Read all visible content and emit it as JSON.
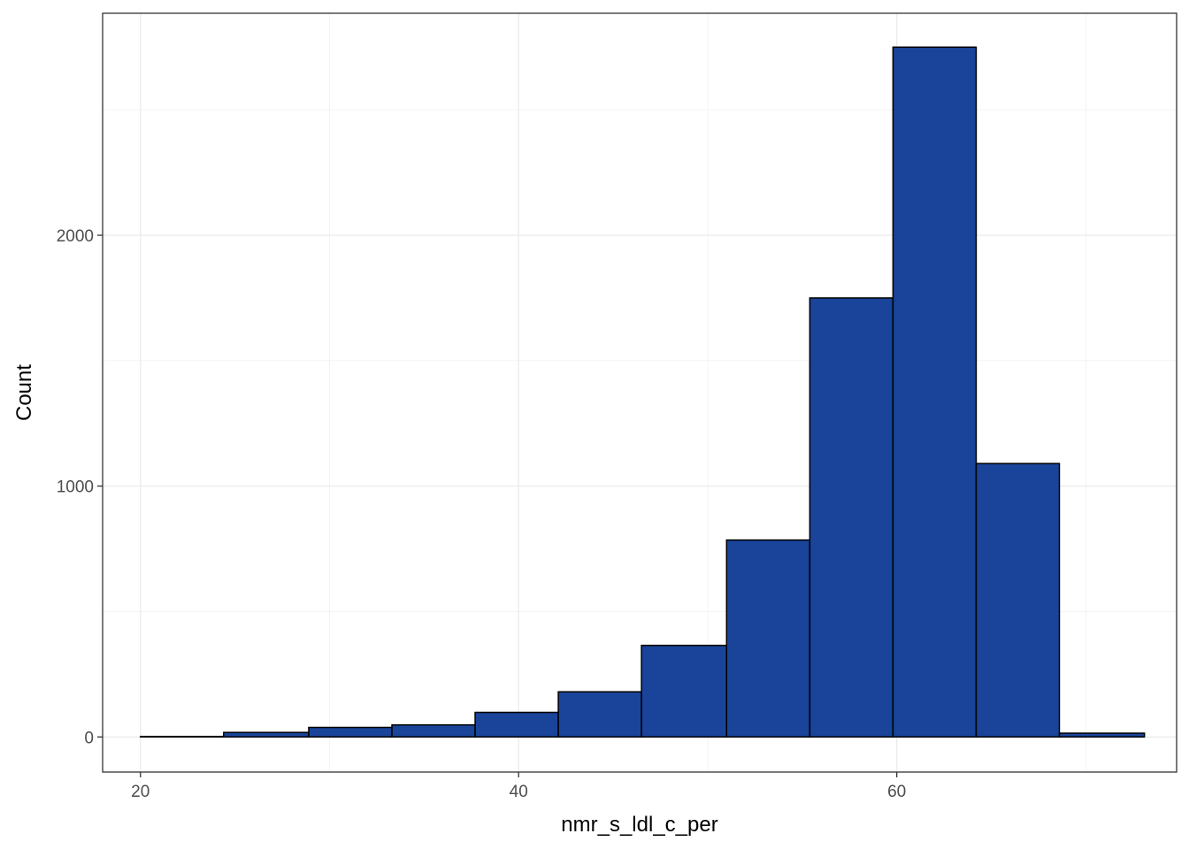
{
  "chart_data": {
    "type": "bar",
    "subtype": "histogram",
    "xlabel": "nmr_s_ldl_c_per",
    "ylabel": "Count",
    "xlim": [
      18,
      74.8
    ],
    "ylim": [
      -140,
      2885
    ],
    "x_ticks": [
      20,
      40,
      60
    ],
    "y_ticks": [
      0,
      1000,
      2000
    ],
    "x_tick_labels": [
      "20",
      "40",
      "60"
    ],
    "y_tick_labels": [
      "0",
      "1000",
      "2000"
    ],
    "x_minor_ticks": [
      30,
      50,
      70
    ],
    "y_minor_ticks": [
      500,
      1500,
      2500
    ],
    "grid": true,
    "bar_fill": "#19449a",
    "bar_outline": "#000000",
    "bins": [
      {
        "x_start": 20.0,
        "x_end": 24.4,
        "count": 2
      },
      {
        "x_start": 24.4,
        "x_end": 28.9,
        "count": 18
      },
      {
        "x_start": 28.9,
        "x_end": 33.3,
        "count": 38
      },
      {
        "x_start": 33.3,
        "x_end": 37.7,
        "count": 48
      },
      {
        "x_start": 37.7,
        "x_end": 42.1,
        "count": 98
      },
      {
        "x_start": 42.1,
        "x_end": 46.5,
        "count": 180
      },
      {
        "x_start": 46.5,
        "x_end": 51.0,
        "count": 365
      },
      {
        "x_start": 51.0,
        "x_end": 55.4,
        "count": 785
      },
      {
        "x_start": 55.4,
        "x_end": 59.8,
        "count": 1750
      },
      {
        "x_start": 59.8,
        "x_end": 64.2,
        "count": 2750
      },
      {
        "x_start": 64.2,
        "x_end": 68.6,
        "count": 1090
      },
      {
        "x_start": 68.6,
        "x_end": 73.1,
        "count": 15
      }
    ]
  }
}
